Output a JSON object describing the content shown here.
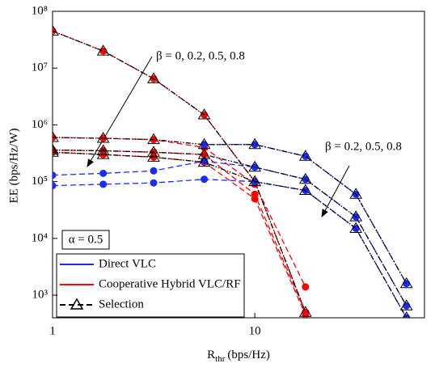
{
  "chart_data": {
    "type": "line",
    "y_label": "EE (bps/Hz/W)",
    "x_label": {
      "main": "R",
      "sub": "thr",
      "unit": "(bps/Hz)"
    },
    "x": [
      1,
      1.78,
      3.16,
      5.62,
      10,
      17.8,
      31.6,
      56.2
    ],
    "xlim": [
      1,
      69
    ],
    "ylim": [
      400,
      100000000
    ],
    "xticks": [
      1,
      10
    ],
    "yticks": [
      {
        "value": 1000,
        "label": "10³"
      },
      {
        "value": 10000,
        "label": "10⁴"
      },
      {
        "value": 100000,
        "label": "10⁵"
      },
      {
        "value": 1000000,
        "label": "10⁶"
      },
      {
        "value": 10000000,
        "label": "10⁷"
      },
      {
        "value": 100000000,
        "label": "10⁸"
      }
    ],
    "log_x": true,
    "log_y": true,
    "series": [
      {
        "color": "#ff0000",
        "line_style": "dash",
        "marker": "circle",
        "values": [
          45000000,
          20000000,
          6500000,
          1500000,
          100000,
          500,
          null,
          null
        ]
      },
      {
        "color": "#ff0000",
        "line_style": "dash",
        "marker": "circle",
        "values": [
          600000,
          580000,
          550000,
          400000,
          90000,
          1400,
          null,
          null
        ]
      },
      {
        "color": "#ff0000",
        "line_style": "dash",
        "marker": "circle",
        "values": [
          360000,
          350000,
          330000,
          300000,
          60000,
          500,
          null,
          null
        ]
      },
      {
        "color": "#ff0000",
        "line_style": "dash",
        "marker": "circle",
        "values": [
          330000,
          300000,
          270000,
          220000,
          50000,
          450,
          null,
          null
        ]
      },
      {
        "color": "#1a2bff",
        "line_style": "dashdot",
        "marker": "circle",
        "values": [
          null,
          null,
          null,
          450000,
          450000,
          280000,
          60000,
          1600
        ]
      },
      {
        "color": "#1a2bff",
        "line_style": "dash",
        "marker": "circle",
        "values": [
          130000,
          140000,
          155000,
          230000,
          180000,
          110000,
          24000,
          650
        ]
      },
      {
        "color": "#1a2bff",
        "line_style": "dash",
        "marker": "circle",
        "values": [
          85000,
          90000,
          95000,
          110000,
          100000,
          70000,
          15000,
          400
        ]
      },
      {
        "color": "#000000",
        "line_style": "dashdotdot",
        "marker": "triangle",
        "values": [
          45000000,
          20000000,
          6500000,
          1500000,
          100000,
          500,
          null,
          null
        ]
      },
      {
        "color": "#000000",
        "line_style": "dashdotdot",
        "marker": "triangle",
        "values": [
          600000,
          580000,
          550000,
          450000,
          450000,
          280000,
          60000,
          1600
        ]
      },
      {
        "color": "#000000",
        "line_style": "dashdotdot",
        "marker": "triangle",
        "values": [
          360000,
          350000,
          330000,
          300000,
          180000,
          110000,
          24000,
          650
        ]
      },
      {
        "color": "#000000",
        "line_style": "dashdotdot",
        "marker": "triangle",
        "values": [
          330000,
          300000,
          270000,
          220000,
          100000,
          70000,
          15000,
          400
        ]
      }
    ],
    "legend": [
      {
        "label": "Direct VLC",
        "color": "#1a2bff",
        "line_style": "solid",
        "marker": "none"
      },
      {
        "label": "Cooperative Hybrid VLC/RF",
        "color": "#ff0000",
        "line_style": "solid",
        "marker": "none"
      },
      {
        "label": "Selection",
        "color": "#000000",
        "line_style": "dash",
        "marker": "triangle"
      }
    ],
    "annotations": [
      "β = 0, 0.2, 0.5, 0.8",
      "β = 0.2, 0.5, 0.8",
      "α = 0.5"
    ]
  }
}
